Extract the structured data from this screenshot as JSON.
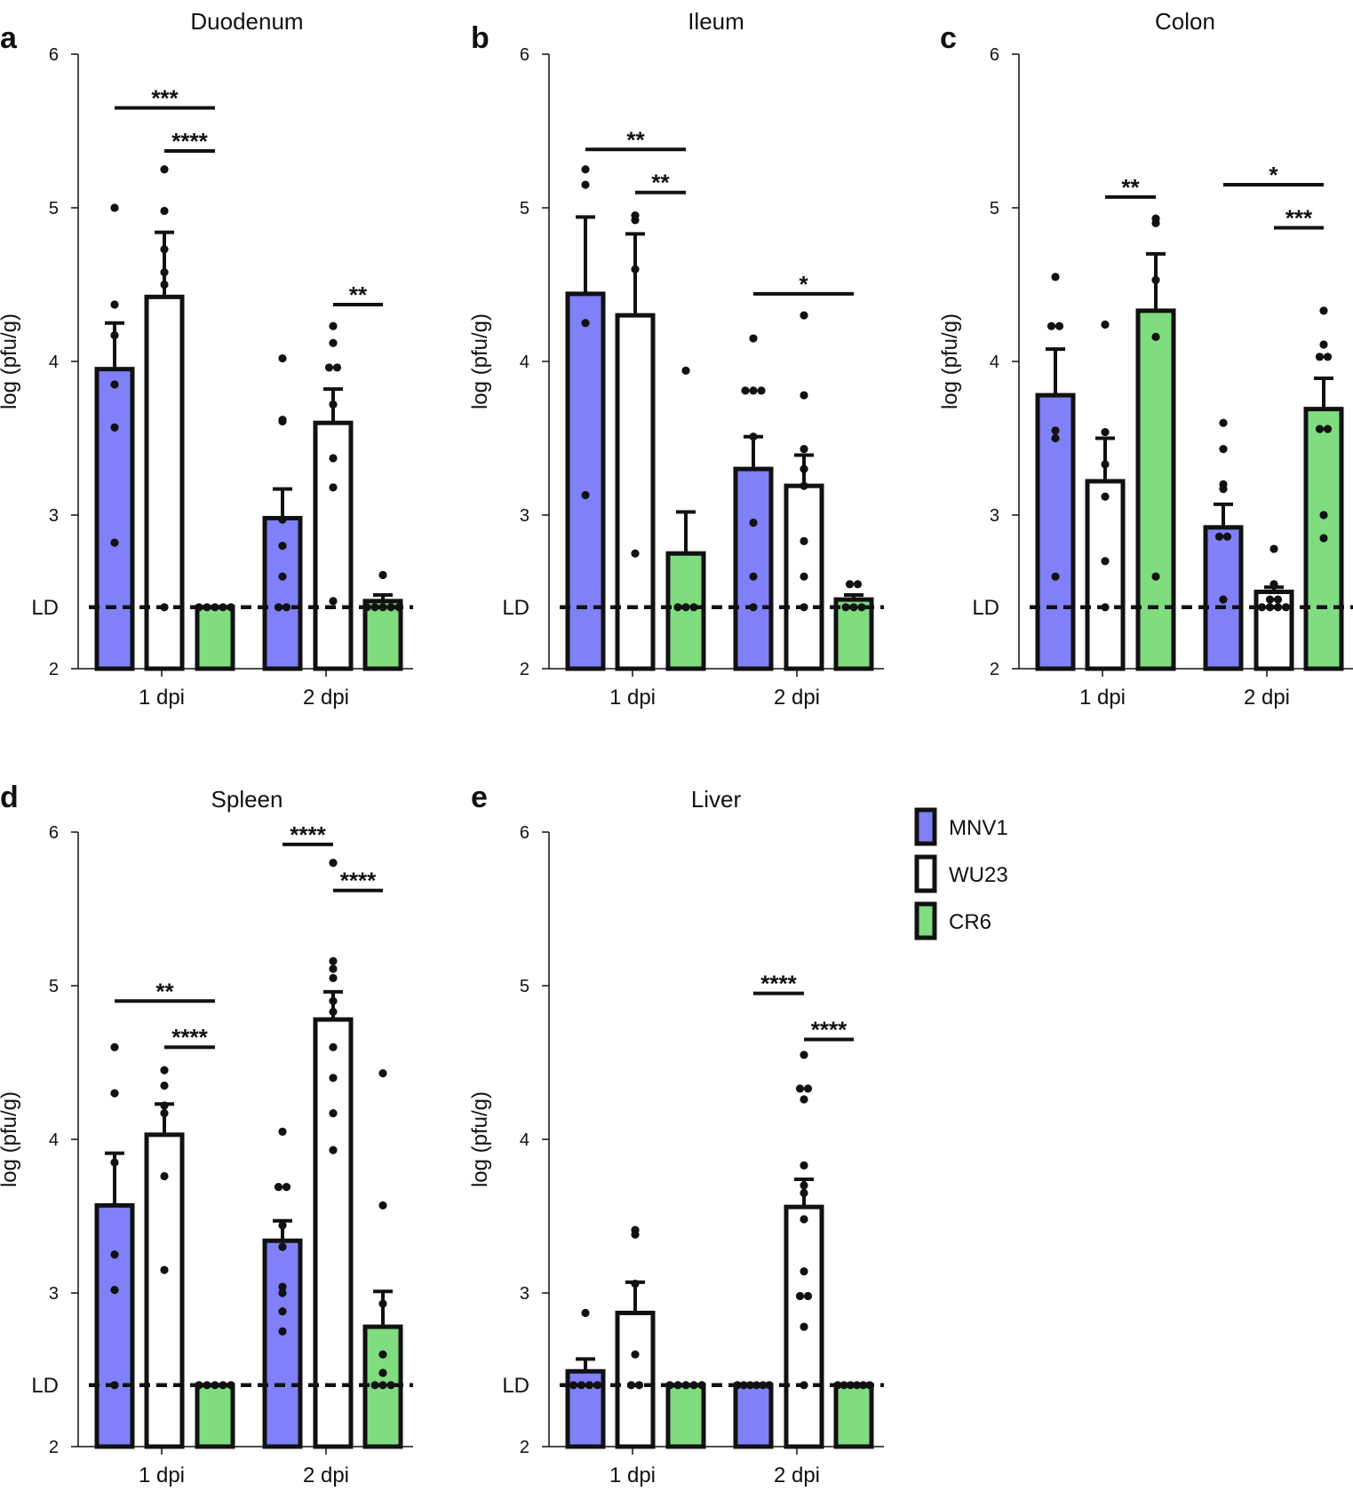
{
  "legend": [
    {
      "name": "MNV1",
      "color": "#8080f8"
    },
    {
      "name": "WU23",
      "color": "#ffffff"
    },
    {
      "name": "CR6",
      "color": "#7fdd7f"
    }
  ],
  "chart_data": [
    {
      "type": "bar",
      "letter": "a",
      "title": "Duodenum",
      "ylabel": "log (pfu/g)",
      "ylim": [
        2,
        6
      ],
      "yticks": [
        "2",
        "3",
        "4",
        "5",
        "6"
      ],
      "ld": {
        "value": 2.4,
        "label": "LD"
      },
      "groups": [
        {
          "label": "1 dpi",
          "bars": [
            {
              "series": "MNV1",
              "mean": 3.95,
              "sem": 0.3,
              "points": [
                5.0,
                4.37,
                4.17,
                3.85,
                3.57,
                2.82
              ]
            },
            {
              "series": "WU23",
              "mean": 4.42,
              "sem": 0.42,
              "points": [
                5.25,
                4.98,
                4.73,
                4.58,
                4.5,
                2.4
              ]
            },
            {
              "series": "CR6",
              "mean": 2.4,
              "sem": 0,
              "points": [
                2.4,
                2.4,
                2.4,
                2.4,
                2.4
              ]
            }
          ]
        },
        {
          "label": "2 dpi",
          "bars": [
            {
              "series": "MNV1",
              "mean": 2.98,
              "sem": 0.19,
              "points": [
                4.02,
                3.62,
                3.61,
                2.97,
                2.8,
                2.6,
                2.4,
                2.4
              ]
            },
            {
              "series": "WU23",
              "mean": 3.6,
              "sem": 0.22,
              "points": [
                4.23,
                4.12,
                3.96,
                3.96,
                3.72,
                3.37,
                3.18,
                2.44
              ]
            },
            {
              "series": "CR6",
              "mean": 2.44,
              "sem": 0.04,
              "points": [
                2.61,
                2.4,
                2.4,
                2.4,
                2.4,
                2.4
              ]
            }
          ]
        }
      ],
      "sig": [
        {
          "from": [
            0,
            0
          ],
          "to": [
            0,
            2
          ],
          "y": 5.65,
          "label": "***"
        },
        {
          "from": [
            0,
            1
          ],
          "to": [
            0,
            2
          ],
          "y": 5.37,
          "label": "****"
        },
        {
          "from": [
            1,
            1
          ],
          "to": [
            1,
            2
          ],
          "y": 4.37,
          "label": "**"
        }
      ]
    },
    {
      "type": "bar",
      "letter": "b",
      "title": "Ileum",
      "ylabel": "log (pfu/g)",
      "ylim": [
        2,
        6
      ],
      "yticks": [
        "2",
        "3",
        "4",
        "5",
        "6"
      ],
      "ld": {
        "value": 2.4,
        "label": "LD"
      },
      "groups": [
        {
          "label": "1 dpi",
          "bars": [
            {
              "series": "MNV1",
              "mean": 4.44,
              "sem": 0.5,
              "points": [
                5.25,
                5.15,
                4.25,
                3.13
              ]
            },
            {
              "series": "WU23",
              "mean": 4.3,
              "sem": 0.53,
              "points": [
                4.95,
                4.92,
                4.6,
                2.75
              ]
            },
            {
              "series": "CR6",
              "mean": 2.75,
              "sem": 0.27,
              "points": [
                3.94,
                2.4,
                2.4,
                2.4
              ]
            }
          ]
        },
        {
          "label": "2 dpi",
          "bars": [
            {
              "series": "MNV1",
              "mean": 3.3,
              "sem": 0.21,
              "points": [
                4.15,
                3.81,
                3.81,
                3.81,
                3.51,
                2.95,
                2.6,
                2.4
              ]
            },
            {
              "series": "WU23",
              "mean": 3.19,
              "sem": 0.2,
              "points": [
                4.3,
                3.78,
                3.43,
                3.3,
                3.19,
                2.83,
                2.6,
                2.4
              ]
            },
            {
              "series": "CR6",
              "mean": 2.45,
              "sem": 0.03,
              "points": [
                2.55,
                2.55,
                2.4,
                2.4,
                2.4
              ]
            }
          ]
        }
      ],
      "sig": [
        {
          "from": [
            0,
            0
          ],
          "to": [
            0,
            2
          ],
          "y": 5.38,
          "label": "**"
        },
        {
          "from": [
            0,
            1
          ],
          "to": [
            0,
            2
          ],
          "y": 5.1,
          "label": "**"
        },
        {
          "from": [
            1,
            0
          ],
          "to": [
            1,
            2
          ],
          "y": 4.44,
          "label": "*"
        }
      ]
    },
    {
      "type": "bar",
      "letter": "c",
      "title": "Colon",
      "ylabel": "log (pfu/g)",
      "ylim": [
        2,
        6
      ],
      "yticks": [
        "2",
        "3",
        "4",
        "5",
        "6"
      ],
      "ld": {
        "value": 2.4,
        "label": "LD"
      },
      "groups": [
        {
          "label": "1 dpi",
          "bars": [
            {
              "series": "MNV1",
              "mean": 3.78,
              "sem": 0.3,
              "points": [
                4.55,
                4.23,
                4.23,
                3.55,
                3.5,
                2.6
              ]
            },
            {
              "series": "WU23",
              "mean": 3.22,
              "sem": 0.28,
              "points": [
                4.24,
                3.54,
                3.33,
                3.12,
                2.7,
                2.4
              ]
            },
            {
              "series": "CR6",
              "mean": 4.33,
              "sem": 0.37,
              "points": [
                4.93,
                4.9,
                4.53,
                4.16,
                2.6
              ]
            }
          ]
        },
        {
          "label": "2 dpi",
          "bars": [
            {
              "series": "MNV1",
              "mean": 2.92,
              "sem": 0.15,
              "points": [
                3.6,
                3.43,
                3.2,
                3.17,
                2.86,
                2.86,
                2.45
              ]
            },
            {
              "series": "WU23",
              "mean": 2.5,
              "sem": 0.03,
              "points": [
                2.78,
                2.55,
                2.45,
                2.45,
                2.4,
                2.4,
                2.4,
                2.4
              ]
            },
            {
              "series": "CR6",
              "mean": 3.69,
              "sem": 0.2,
              "points": [
                4.33,
                4.11,
                4.03,
                4.03,
                3.56,
                3.56,
                3.0,
                2.85
              ]
            }
          ]
        }
      ],
      "sig": [
        {
          "from": [
            0,
            1
          ],
          "to": [
            0,
            2
          ],
          "y": 5.07,
          "label": "**"
        },
        {
          "from": [
            1,
            0
          ],
          "to": [
            1,
            2
          ],
          "y": 5.15,
          "label": "*"
        },
        {
          "from": [
            1,
            1
          ],
          "to": [
            1,
            2
          ],
          "y": 4.87,
          "label": "***"
        }
      ]
    },
    {
      "type": "bar",
      "letter": "d",
      "title": "Spleen",
      "ylabel": "log (pfu/g)",
      "ylim": [
        2,
        6
      ],
      "yticks": [
        "2",
        "3",
        "4",
        "5",
        "6"
      ],
      "ld": {
        "value": 2.4,
        "label": "LD"
      },
      "groups": [
        {
          "label": "1 dpi",
          "bars": [
            {
              "series": "MNV1",
              "mean": 3.57,
              "sem": 0.34,
              "points": [
                4.6,
                4.3,
                3.85,
                3.25,
                3.02,
                2.4
              ]
            },
            {
              "series": "WU23",
              "mean": 4.03,
              "sem": 0.2,
              "points": [
                4.45,
                4.35,
                4.22,
                4.17,
                3.76,
                3.15
              ]
            },
            {
              "series": "CR6",
              "mean": 2.4,
              "sem": 0,
              "points": [
                2.4,
                2.4,
                2.4,
                2.4,
                2.4
              ]
            }
          ]
        },
        {
          "label": "2 dpi",
          "bars": [
            {
              "series": "MNV1",
              "mean": 3.34,
              "sem": 0.13,
              "points": [
                4.05,
                3.69,
                3.69,
                3.44,
                3.3,
                3.04,
                3.0,
                2.88,
                2.75
              ]
            },
            {
              "series": "WU23",
              "mean": 4.78,
              "sem": 0.18,
              "points": [
                5.8,
                5.16,
                5.11,
                5.05,
                4.9,
                4.83,
                4.6,
                4.4,
                4.17,
                3.93
              ]
            },
            {
              "series": "CR6",
              "mean": 2.78,
              "sem": 0.23,
              "points": [
                4.43,
                3.57,
                2.93,
                2.6,
                2.48,
                2.4,
                2.4,
                2.4
              ]
            }
          ]
        }
      ],
      "sig": [
        {
          "from": [
            0,
            0
          ],
          "to": [
            0,
            2
          ],
          "y": 4.9,
          "label": "**"
        },
        {
          "from": [
            0,
            1
          ],
          "to": [
            0,
            2
          ],
          "y": 4.6,
          "label": "****"
        },
        {
          "from": [
            1,
            0
          ],
          "to": [
            1,
            1
          ],
          "y": 5.92,
          "label": "****"
        },
        {
          "from": [
            1,
            1
          ],
          "to": [
            1,
            2
          ],
          "y": 5.62,
          "label": "****"
        }
      ]
    },
    {
      "type": "bar",
      "letter": "e",
      "title": "Liver",
      "ylabel": "log (pfu/g)",
      "ylim": [
        2,
        6
      ],
      "yticks": [
        "2",
        "3",
        "4",
        "5",
        "6"
      ],
      "ld": {
        "value": 2.4,
        "label": "LD"
      },
      "groups": [
        {
          "label": "1 dpi",
          "bars": [
            {
              "series": "MNV1",
              "mean": 2.49,
              "sem": 0.08,
              "points": [
                2.87,
                2.4,
                2.4,
                2.4,
                2.4
              ]
            },
            {
              "series": "WU23",
              "mean": 2.87,
              "sem": 0.2,
              "points": [
                3.41,
                3.38,
                3.06,
                2.6,
                2.4,
                2.4
              ]
            },
            {
              "series": "CR6",
              "mean": 2.4,
              "sem": 0,
              "points": [
                2.4,
                2.4,
                2.4,
                2.4,
                2.4
              ]
            }
          ]
        },
        {
          "label": "2 dpi",
          "bars": [
            {
              "series": "MNV1",
              "mean": 2.4,
              "sem": 0,
              "points": [
                2.4,
                2.4,
                2.4,
                2.4,
                2.4,
                2.4
              ]
            },
            {
              "series": "WU23",
              "mean": 3.56,
              "sem": 0.18,
              "points": [
                4.55,
                4.33,
                4.33,
                4.26,
                3.83,
                3.7,
                3.65,
                3.48,
                3.14,
                2.98,
                2.98,
                2.78,
                2.4
              ]
            },
            {
              "series": "CR6",
              "mean": 2.4,
              "sem": 0,
              "points": [
                2.4,
                2.4,
                2.4,
                2.4,
                2.4,
                2.4
              ]
            }
          ]
        }
      ],
      "sig": [
        {
          "from": [
            1,
            0
          ],
          "to": [
            1,
            1
          ],
          "y": 4.95,
          "label": "****"
        },
        {
          "from": [
            1,
            1
          ],
          "to": [
            1,
            2
          ],
          "y": 4.65,
          "label": "****"
        }
      ]
    }
  ]
}
